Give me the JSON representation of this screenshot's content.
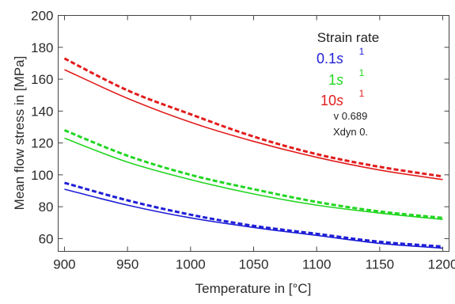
{
  "chart_data": {
    "type": "line",
    "xlabel": "Temperature in [°C]",
    "ylabel": "Mean flow stress in [MPa]",
    "xlim": [
      895,
      1205
    ],
    "ylim": [
      52,
      200
    ],
    "x_ticks": [
      900,
      950,
      1000,
      1050,
      1100,
      1150,
      1200
    ],
    "y_ticks": [
      60,
      80,
      100,
      120,
      140,
      160,
      180,
      200
    ],
    "grid": false,
    "legend": {
      "placement": "top-right",
      "title": "Strain rate",
      "entries": [
        {
          "base": "0.1",
          "unit": "s",
          "exp": "1",
          "color": "#1f1fd6"
        },
        {
          "base": "1",
          "unit": "s",
          "exp": "1",
          "color": "#22d622"
        },
        {
          "base": "10",
          "unit": "s",
          "exp": "1",
          "color": "#e21c1c"
        }
      ],
      "params": [
        {
          "symbol": "",
          "label": "v",
          "sep": "",
          "value": "0.689"
        },
        {
          "symbol": "",
          "label": "Xdyn",
          "sep": "",
          "value": "0."
        }
      ]
    },
    "series": [
      {
        "strain_rate": "10",
        "style": "solid",
        "color": "#e21c1c",
        "x": [
          900,
          950,
          1000,
          1050,
          1100,
          1150,
          1200
        ],
        "y": [
          166,
          148,
          133,
          121,
          111,
          103,
          97
        ]
      },
      {
        "strain_rate": "10",
        "style": "dashed",
        "color": "#e21c1c",
        "x": [
          900,
          950,
          1000,
          1050,
          1100,
          1150,
          1200
        ],
        "y": [
          173,
          153,
          138,
          124,
          113,
          105,
          99
        ]
      },
      {
        "strain_rate": "1",
        "style": "solid",
        "color": "#22d622",
        "x": [
          900,
          950,
          1000,
          1050,
          1100,
          1150,
          1200
        ],
        "y": [
          123,
          108,
          97,
          88,
          81,
          76,
          72
        ]
      },
      {
        "strain_rate": "1",
        "style": "dashed",
        "color": "#22d622",
        "x": [
          900,
          950,
          1000,
          1050,
          1100,
          1150,
          1200
        ],
        "y": [
          128,
          112,
          100,
          91,
          83,
          77,
          73
        ]
      },
      {
        "strain_rate": "0.1",
        "style": "solid",
        "color": "#1f1fd6",
        "x": [
          900,
          950,
          1000,
          1050,
          1100,
          1150,
          1200
        ],
        "y": [
          91,
          81,
          73,
          67,
          62,
          57,
          54
        ]
      },
      {
        "strain_rate": "0.1",
        "style": "dashed",
        "color": "#1f1fd6",
        "x": [
          900,
          950,
          1000,
          1050,
          1100,
          1150,
          1200
        ],
        "y": [
          95,
          84,
          75,
          68,
          63,
          58,
          55
        ]
      }
    ]
  }
}
